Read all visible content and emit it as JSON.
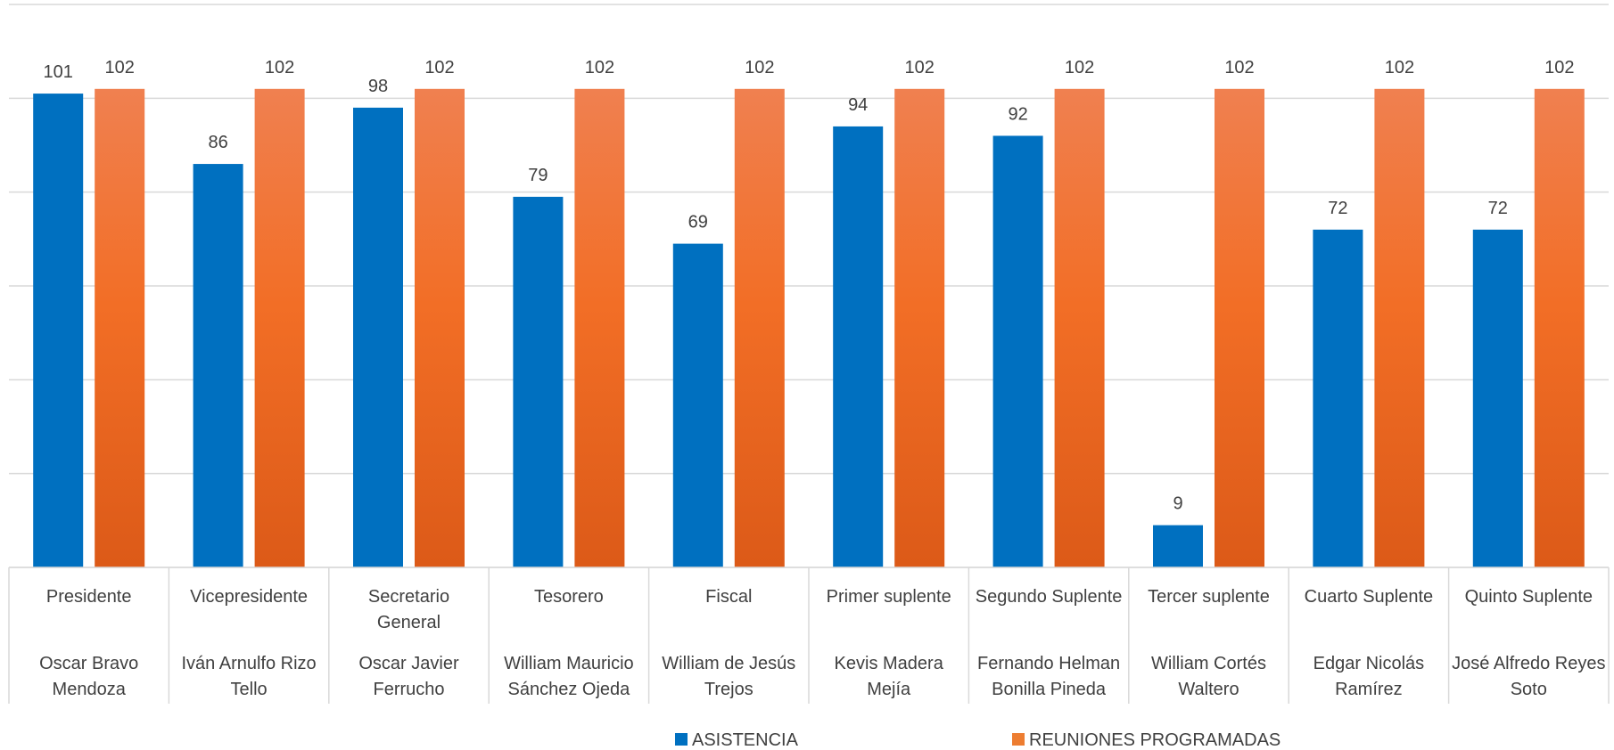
{
  "chart_data": {
    "type": "bar",
    "title": "",
    "ylim": [
      0,
      120
    ],
    "grid": true,
    "legend_position": "bottom",
    "categories": [
      {
        "role": "Presidente",
        "name": "Oscar Bravo Mendoza"
      },
      {
        "role": "Vicepresidente",
        "name": "Iván Arnulfo Rizo Tello"
      },
      {
        "role": "Secretario General",
        "name": "Oscar Javier Ferrucho"
      },
      {
        "role": "Tesorero",
        "name": "William Mauricio Sánchez Ojeda"
      },
      {
        "role": "Fiscal",
        "name": "William de Jesús Trejos"
      },
      {
        "role": "Primer suplente",
        "name": "Kevis Madera Mejía"
      },
      {
        "role": "Segundo Suplente",
        "name": "Fernando Helman Bonilla Pineda"
      },
      {
        "role": "Tercer suplente",
        "name": "William Cortés Waltero"
      },
      {
        "role": "Cuarto Suplente",
        "name": "Edgar Nicolás Ramírez"
      },
      {
        "role": "Quinto Suplente",
        "name": "José Alfredo Reyes Soto"
      }
    ],
    "category_lines": {
      "role": [
        [
          "Presidente"
        ],
        [
          "Vicepresidente"
        ],
        [
          "Secretario",
          "General"
        ],
        [
          "Tesorero"
        ],
        [
          "Fiscal"
        ],
        [
          "Primer suplente"
        ],
        [
          "Segundo Suplente"
        ],
        [
          "Tercer suplente"
        ],
        [
          "Cuarto Suplente"
        ],
        [
          "Quinto Suplente"
        ]
      ],
      "name": [
        [
          "Oscar Bravo",
          "Mendoza"
        ],
        [
          "Iván Arnulfo Rizo",
          "Tello"
        ],
        [
          "Oscar Javier",
          "Ferrucho"
        ],
        [
          "William Mauricio",
          "Sánchez Ojeda"
        ],
        [
          "William de Jesús",
          "Trejos"
        ],
        [
          "Kevis Madera",
          "Mejía"
        ],
        [
          "Fernando Helman",
          "Bonilla Pineda"
        ],
        [
          "William Cortés",
          "Waltero"
        ],
        [
          "Edgar Nicolás",
          "Ramírez"
        ],
        [
          "José Alfredo Reyes",
          "Soto"
        ]
      ]
    },
    "series": [
      {
        "name": "ASISTENCIA",
        "color": "#0070c0",
        "values": [
          101,
          86,
          98,
          79,
          69,
          94,
          92,
          9,
          72,
          72
        ]
      },
      {
        "name": "REUNIONES PROGRAMADAS",
        "color": "#ed7d31",
        "gradient": [
          "#f08050",
          "#f26e26",
          "#dc5a18"
        ],
        "values": [
          102,
          102,
          102,
          102,
          102,
          102,
          102,
          102,
          102,
          102
        ]
      }
    ]
  }
}
